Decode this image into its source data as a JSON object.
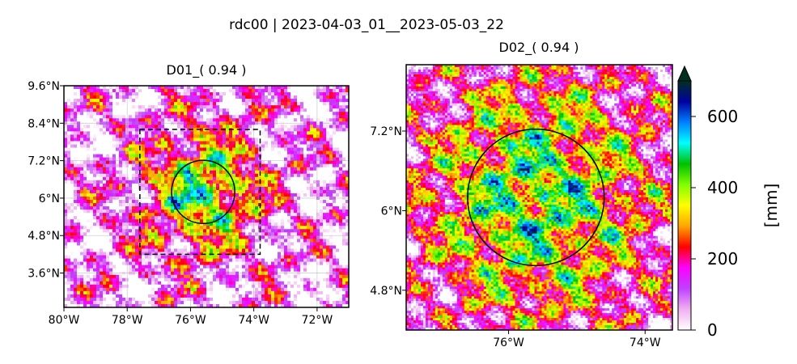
{
  "figure": {
    "suptitle": "rdc00 | 2023-04-03_01__2023-05-03_22"
  },
  "chart_data": [
    {
      "type": "heatmap",
      "title": "D01_( 0.94 )",
      "xlabel": "",
      "ylabel": "",
      "xlim": [
        -80,
        -71
      ],
      "ylim": [
        2.5,
        9.6
      ],
      "x_ticks": [
        "80°W",
        "78°W",
        "76°W",
        "74°W",
        "72°W"
      ],
      "x_tick_values": [
        -80,
        -78,
        -76,
        -74,
        -72
      ],
      "y_ticks": [
        "9.6°N",
        "8.4°N",
        "7.2°N",
        "6°N",
        "4.8°N",
        "3.6°N"
      ],
      "y_tick_values": [
        9.6,
        8.4,
        7.2,
        6.0,
        4.8,
        3.6
      ],
      "grid": true,
      "inner_domain_box": {
        "lon": [
          -77.6,
          -73.8
        ],
        "lat": [
          4.2,
          8.2
        ]
      },
      "circle": {
        "center_lon": -75.6,
        "center_lat": 6.2,
        "radius_deg": 1.0
      },
      "value_range": [
        0,
        700
      ]
    },
    {
      "type": "heatmap",
      "title": "D02_( 0.94 )",
      "xlabel": "",
      "ylabel": "",
      "xlim": [
        -77.5,
        -73.6
      ],
      "ylim": [
        4.2,
        8.2
      ],
      "x_ticks": [
        "76°W",
        "74°W"
      ],
      "x_tick_values": [
        -76,
        -74
      ],
      "y_ticks": [
        "7.2°N",
        "6°N",
        "4.8°N"
      ],
      "y_tick_values": [
        7.2,
        6.0,
        4.8
      ],
      "grid": false,
      "circle": {
        "center_lon": -75.6,
        "center_lat": 6.2,
        "radius_deg": 1.0
      },
      "value_range": [
        0,
        700
      ]
    }
  ],
  "colorbar": {
    "label": "[mm]",
    "ticks": [
      "0",
      "200",
      "400",
      "600"
    ],
    "tick_values": [
      0,
      200,
      400,
      600
    ],
    "vmin": 0,
    "vmax": 700,
    "extend": "max",
    "colormap": "gist_ncar_r",
    "colors": [
      "#ffffff",
      "#f0b0f0",
      "#c040ff",
      "#ff00ff",
      "#ff0000",
      "#ffa500",
      "#ffff00",
      "#80ff00",
      "#00c000",
      "#00ffff",
      "#0080ff",
      "#0000a0",
      "#003020"
    ]
  }
}
